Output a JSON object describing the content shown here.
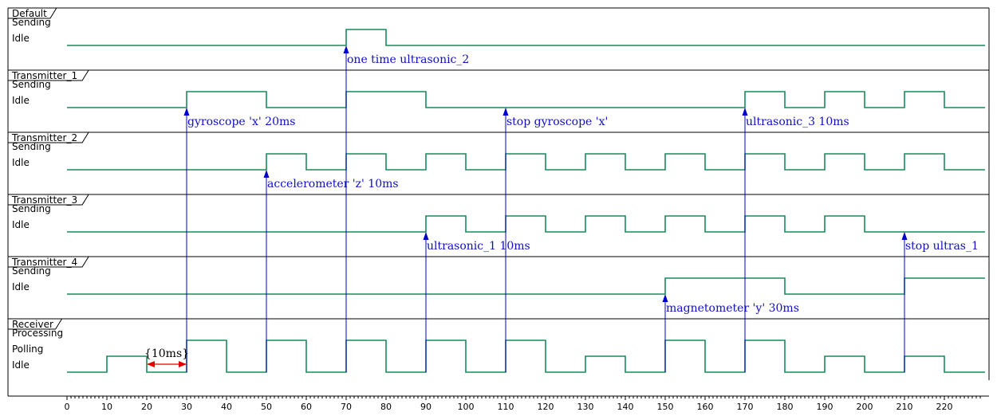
{
  "timeline": {
    "t_min": 0,
    "t_max": 229,
    "tick_step": 10,
    "tick_labels": [
      "0",
      "10",
      "20",
      "30",
      "40",
      "50",
      "60",
      "70",
      "80",
      "90",
      "100",
      "110",
      "120",
      "130",
      "140",
      "150",
      "160",
      "170",
      "180",
      "190",
      "200",
      "210",
      "220"
    ]
  },
  "colors": {
    "signal": "#1a8a5a",
    "message": "#0000cc",
    "message_text": "#1010c0",
    "duration": "#e00000",
    "frame": "#000000"
  },
  "lanes": [
    {
      "name": "Default",
      "states": [
        "Sending",
        "Idle"
      ],
      "segments": [
        {
          "t": 0,
          "state": "Idle"
        },
        {
          "t": 70,
          "state": "Sending"
        },
        {
          "t": 80,
          "state": "Idle"
        }
      ]
    },
    {
      "name": "Transmitter_1",
      "states": [
        "Sending",
        "Idle"
      ],
      "segments": [
        {
          "t": 0,
          "state": "Idle"
        },
        {
          "t": 30,
          "state": "Sending"
        },
        {
          "t": 50,
          "state": "Idle"
        },
        {
          "t": 70,
          "state": "Sending"
        },
        {
          "t": 90,
          "state": "Idle"
        },
        {
          "t": 170,
          "state": "Sending"
        },
        {
          "t": 180,
          "state": "Idle"
        },
        {
          "t": 190,
          "state": "Sending"
        },
        {
          "t": 200,
          "state": "Idle"
        },
        {
          "t": 210,
          "state": "Sending"
        },
        {
          "t": 220,
          "state": "Idle"
        }
      ]
    },
    {
      "name": "Transmitter_2",
      "states": [
        "Sending",
        "Idle"
      ],
      "segments": [
        {
          "t": 0,
          "state": "Idle"
        },
        {
          "t": 50,
          "state": "Sending"
        },
        {
          "t": 60,
          "state": "Idle"
        },
        {
          "t": 70,
          "state": "Sending"
        },
        {
          "t": 80,
          "state": "Idle"
        },
        {
          "t": 90,
          "state": "Sending"
        },
        {
          "t": 100,
          "state": "Idle"
        },
        {
          "t": 110,
          "state": "Sending"
        },
        {
          "t": 120,
          "state": "Idle"
        },
        {
          "t": 130,
          "state": "Sending"
        },
        {
          "t": 140,
          "state": "Idle"
        },
        {
          "t": 150,
          "state": "Sending"
        },
        {
          "t": 160,
          "state": "Idle"
        },
        {
          "t": 170,
          "state": "Sending"
        },
        {
          "t": 180,
          "state": "Idle"
        },
        {
          "t": 190,
          "state": "Sending"
        },
        {
          "t": 200,
          "state": "Idle"
        },
        {
          "t": 210,
          "state": "Sending"
        },
        {
          "t": 220,
          "state": "Idle"
        }
      ]
    },
    {
      "name": "Transmitter_3",
      "states": [
        "Sending",
        "Idle"
      ],
      "segments": [
        {
          "t": 0,
          "state": "Idle"
        },
        {
          "t": 90,
          "state": "Sending"
        },
        {
          "t": 100,
          "state": "Idle"
        },
        {
          "t": 110,
          "state": "Sending"
        },
        {
          "t": 120,
          "state": "Idle"
        },
        {
          "t": 130,
          "state": "Sending"
        },
        {
          "t": 140,
          "state": "Idle"
        },
        {
          "t": 150,
          "state": "Sending"
        },
        {
          "t": 160,
          "state": "Idle"
        },
        {
          "t": 170,
          "state": "Sending"
        },
        {
          "t": 180,
          "state": "Idle"
        },
        {
          "t": 190,
          "state": "Sending"
        },
        {
          "t": 200,
          "state": "Idle"
        }
      ]
    },
    {
      "name": "Transmitter_4",
      "states": [
        "Sending",
        "Idle"
      ],
      "segments": [
        {
          "t": 0,
          "state": "Idle"
        },
        {
          "t": 150,
          "state": "Sending"
        },
        {
          "t": 180,
          "state": "Idle"
        },
        {
          "t": 210,
          "state": "Sending"
        }
      ]
    },
    {
      "name": "Receiver",
      "states": [
        "Processing",
        "Polling",
        "Idle"
      ],
      "segments": [
        {
          "t": 0,
          "state": "Idle"
        },
        {
          "t": 10,
          "state": "Polling"
        },
        {
          "t": 20,
          "state": "Idle"
        },
        {
          "t": 30,
          "state": "Processing"
        },
        {
          "t": 40,
          "state": "Idle"
        },
        {
          "t": 50,
          "state": "Processing"
        },
        {
          "t": 60,
          "state": "Idle"
        },
        {
          "t": 70,
          "state": "Processing"
        },
        {
          "t": 80,
          "state": "Idle"
        },
        {
          "t": 90,
          "state": "Processing"
        },
        {
          "t": 100,
          "state": "Idle"
        },
        {
          "t": 110,
          "state": "Processing"
        },
        {
          "t": 120,
          "state": "Idle"
        },
        {
          "t": 130,
          "state": "Polling"
        },
        {
          "t": 140,
          "state": "Idle"
        },
        {
          "t": 150,
          "state": "Processing"
        },
        {
          "t": 160,
          "state": "Idle"
        },
        {
          "t": 170,
          "state": "Processing"
        },
        {
          "t": 180,
          "state": "Idle"
        },
        {
          "t": 190,
          "state": "Polling"
        },
        {
          "t": 200,
          "state": "Idle"
        },
        {
          "t": 210,
          "state": "Polling"
        },
        {
          "t": 220,
          "state": "Idle"
        }
      ]
    }
  ],
  "messages": [
    {
      "t": 30,
      "from": "Receiver",
      "to": "Transmitter_1",
      "label": "gyroscope 'x' 20ms"
    },
    {
      "t": 50,
      "from": "Receiver",
      "to": "Transmitter_2",
      "label": "accelerometer 'z' 10ms"
    },
    {
      "t": 70,
      "from": "Receiver",
      "to": "Default",
      "label": "one time ultrasonic_2"
    },
    {
      "t": 90,
      "from": "Receiver",
      "to": "Transmitter_3",
      "label": "ultrasonic_1 10ms"
    },
    {
      "t": 110,
      "from": "Receiver",
      "to": "Transmitter_1",
      "label": "stop gyroscope 'x'"
    },
    {
      "t": 150,
      "from": "Receiver",
      "to": "Transmitter_4",
      "label": "magnetometer 'y' 30ms"
    },
    {
      "t": 170,
      "from": "Receiver",
      "to": "Transmitter_1",
      "label": "ultrasonic_3 10ms"
    },
    {
      "t": 210,
      "from": "Receiver",
      "to": "Transmitter_3",
      "label": "stop ultras_1"
    }
  ],
  "durations": [
    {
      "lane": "Receiver",
      "t_start": 20,
      "t_end": 30,
      "label": "{10ms}"
    }
  ]
}
